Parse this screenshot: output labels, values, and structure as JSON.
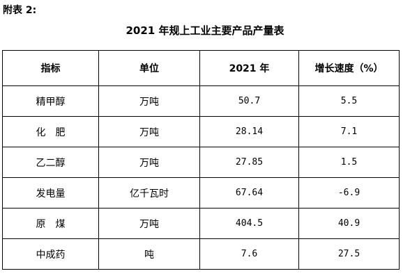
{
  "appendix_label": "附表 2:",
  "title": "2021 年规上工业主要产品产量表",
  "table": {
    "headers": [
      "指标",
      "单位",
      "2021 年",
      "增长速度（%）"
    ],
    "rows": [
      {
        "name": "精甲醇",
        "unit": "万吨",
        "value": "50.7",
        "growth": "5.5"
      },
      {
        "name": "化　肥",
        "unit": "万吨",
        "value": "28.14",
        "growth": "7.1"
      },
      {
        "name": "乙二醇",
        "unit": "万吨",
        "value": "27.85",
        "growth": "1.5"
      },
      {
        "name": "发电量",
        "unit": "亿千瓦时",
        "value": "67.64",
        "growth": "-6.9"
      },
      {
        "name": "原　煤",
        "unit": "万吨",
        "value": "404.5",
        "growth": "40.9"
      },
      {
        "name": "中成药",
        "unit": "吨",
        "value": "7.6",
        "growth": "27.5"
      }
    ]
  }
}
